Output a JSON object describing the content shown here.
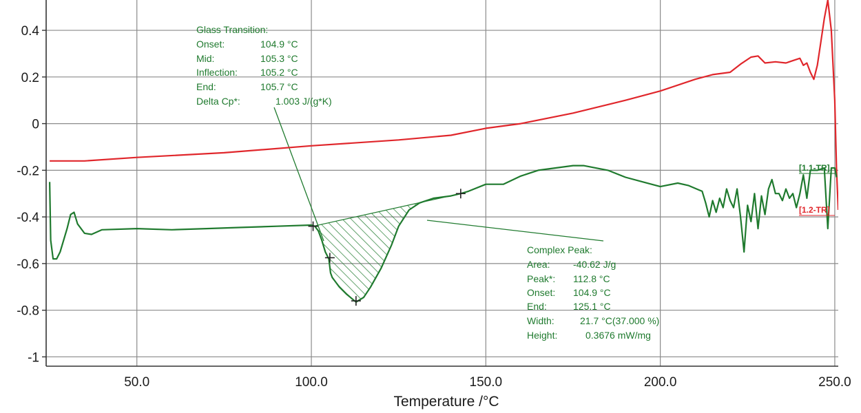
{
  "chart_data": {
    "type": "line",
    "xlabel": "Temperature /°C",
    "ylabel": "",
    "xlim": [
      24,
      251
    ],
    "ylim": [
      -1.04,
      0.53
    ],
    "grid": true,
    "x_ticks": [
      {
        "value": 50,
        "label": "50.0"
      },
      {
        "value": 100,
        "label": "100.0"
      },
      {
        "value": 150,
        "label": "150.0"
      },
      {
        "value": 200,
        "label": "200.0"
      },
      {
        "value": 250,
        "label": "250.0"
      }
    ],
    "y_ticks": [
      {
        "value": 0.4,
        "label": "0.4"
      },
      {
        "value": 0.2,
        "label": "0.2"
      },
      {
        "value": 0,
        "label": "0"
      },
      {
        "value": -0.2,
        "label": "-0.2"
      },
      {
        "value": -0.4,
        "label": "-0.4"
      },
      {
        "value": -0.6,
        "label": "-0.6"
      },
      {
        "value": -0.8,
        "label": "-0.8"
      },
      {
        "value": -1,
        "label": "-1"
      }
    ],
    "series": [
      {
        "name": "[1.2-TR]",
        "color": "#e0262b",
        "points": [
          [
            25,
            -0.16
          ],
          [
            35,
            -0.16
          ],
          [
            50,
            -0.145
          ],
          [
            75,
            -0.125
          ],
          [
            100,
            -0.095
          ],
          [
            125,
            -0.07
          ],
          [
            140,
            -0.05
          ],
          [
            150,
            -0.02
          ],
          [
            160,
            0.0
          ],
          [
            175,
            0.045
          ],
          [
            190,
            0.1
          ],
          [
            200,
            0.14
          ],
          [
            210,
            0.19
          ],
          [
            215,
            0.21
          ],
          [
            220,
            0.22
          ],
          [
            223,
            0.255
          ],
          [
            226,
            0.285
          ],
          [
            228,
            0.29
          ],
          [
            230,
            0.26
          ],
          [
            233,
            0.265
          ],
          [
            236,
            0.26
          ],
          [
            238,
            0.27
          ],
          [
            240,
            0.28
          ],
          [
            241,
            0.25
          ],
          [
            242,
            0.26
          ],
          [
            243,
            0.22
          ],
          [
            244,
            0.19
          ],
          [
            245,
            0.25
          ],
          [
            246,
            0.35
          ],
          [
            247,
            0.45
          ],
          [
            248,
            0.53
          ],
          [
            249,
            0.4
          ],
          [
            250,
            0.1
          ],
          [
            250.5,
            -0.2
          ],
          [
            251,
            -0.37
          ]
        ]
      },
      {
        "name": "[1.1-TR]",
        "color": "#1f7a2e",
        "points": [
          [
            25,
            -0.25
          ],
          [
            25.3,
            -0.5
          ],
          [
            26,
            -0.58
          ],
          [
            27,
            -0.58
          ],
          [
            28,
            -0.55
          ],
          [
            30,
            -0.45
          ],
          [
            31,
            -0.39
          ],
          [
            32,
            -0.38
          ],
          [
            33,
            -0.43
          ],
          [
            35,
            -0.47
          ],
          [
            37,
            -0.475
          ],
          [
            40,
            -0.455
          ],
          [
            50,
            -0.45
          ],
          [
            60,
            -0.455
          ],
          [
            70,
            -0.45
          ],
          [
            80,
            -0.445
          ],
          [
            90,
            -0.44
          ],
          [
            100,
            -0.435
          ],
          [
            101,
            -0.44
          ],
          [
            102,
            -0.46
          ],
          [
            103,
            -0.5
          ],
          [
            104,
            -0.55
          ],
          [
            105,
            -0.58
          ],
          [
            105.5,
            -0.64
          ],
          [
            106,
            -0.66
          ],
          [
            107,
            -0.68
          ],
          [
            108,
            -0.7
          ],
          [
            110,
            -0.73
          ],
          [
            112.8,
            -0.765
          ],
          [
            115,
            -0.745
          ],
          [
            117,
            -0.7
          ],
          [
            120,
            -0.62
          ],
          [
            123,
            -0.52
          ],
          [
            125,
            -0.44
          ],
          [
            128,
            -0.37
          ],
          [
            131,
            -0.34
          ],
          [
            135,
            -0.32
          ],
          [
            140,
            -0.31
          ],
          [
            142.8,
            -0.3
          ],
          [
            145,
            -0.29
          ],
          [
            150,
            -0.26
          ],
          [
            155,
            -0.26
          ],
          [
            160,
            -0.225
          ],
          [
            165,
            -0.2
          ],
          [
            170,
            -0.19
          ],
          [
            175,
            -0.18
          ],
          [
            178,
            -0.18
          ],
          [
            185,
            -0.2
          ],
          [
            190,
            -0.23
          ],
          [
            195,
            -0.25
          ],
          [
            200,
            -0.27
          ],
          [
            205,
            -0.255
          ],
          [
            208,
            -0.265
          ],
          [
            212,
            -0.29
          ],
          [
            213,
            -0.34
          ],
          [
            214,
            -0.4
          ],
          [
            215,
            -0.33
          ],
          [
            216,
            -0.38
          ],
          [
            217,
            -0.32
          ],
          [
            218,
            -0.36
          ],
          [
            219,
            -0.28
          ],
          [
            220,
            -0.33
          ],
          [
            221,
            -0.36
          ],
          [
            222,
            -0.28
          ],
          [
            223,
            -0.4
          ],
          [
            224,
            -0.55
          ],
          [
            225,
            -0.35
          ],
          [
            226,
            -0.42
          ],
          [
            227,
            -0.3
          ],
          [
            228,
            -0.45
          ],
          [
            229,
            -0.31
          ],
          [
            230,
            -0.39
          ],
          [
            231,
            -0.28
          ],
          [
            232,
            -0.24
          ],
          [
            233,
            -0.3
          ],
          [
            234,
            -0.3
          ],
          [
            235,
            -0.33
          ],
          [
            236,
            -0.28
          ],
          [
            237,
            -0.32
          ],
          [
            238,
            -0.3
          ],
          [
            239,
            -0.36
          ],
          [
            240,
            -0.3
          ],
          [
            241,
            -0.22
          ],
          [
            242,
            -0.32
          ],
          [
            243,
            -0.2
          ],
          [
            245,
            -0.2
          ],
          [
            247,
            -0.19
          ],
          [
            248,
            -0.45
          ],
          [
            249,
            -0.19
          ],
          [
            250,
            -0.19
          ],
          [
            250.5,
            -0.23
          ]
        ]
      }
    ],
    "markers": [
      {
        "x": 100.5,
        "y": -0.44
      },
      {
        "x": 105.3,
        "y": -0.575
      },
      {
        "x": 112.8,
        "y": -0.76
      },
      {
        "x": 142.8,
        "y": -0.3
      }
    ],
    "shaded_region": {
      "x_start": 100.5,
      "x_end": 142.8
    }
  },
  "series_tags": {
    "green": "[1.1-TR]",
    "red": "[1.2-TR]"
  },
  "glass_transition": {
    "title": "Glass Transition:",
    "rows": [
      {
        "label": "Onset:",
        "value": "104.9 °C"
      },
      {
        "label": "Mid:",
        "value": "105.3 °C"
      },
      {
        "label": "Inflection:",
        "value": "105.2 °C"
      },
      {
        "label": "End:",
        "value": "105.7 °C"
      },
      {
        "label": "Delta Cp*:",
        "value": "1.003 J/(g*K)"
      }
    ]
  },
  "complex_peak": {
    "title": "Complex Peak:",
    "rows": [
      {
        "label": "Area:",
        "value": "-40.62 J/g"
      },
      {
        "label": "Peak*:",
        "value": "112.8 °C"
      },
      {
        "label": "Onset:",
        "value": "104.9 °C"
      },
      {
        "label": "End:",
        "value": "125.1 °C"
      },
      {
        "label": "Width:",
        "value": "21.7 °C(37.000 %)"
      },
      {
        "label": "Height:",
        "value": "0.3676 mW/mg"
      }
    ]
  },
  "colors": {
    "green": "#1f7a2e",
    "red": "#e0262b",
    "grid": "#8a8a8a"
  }
}
